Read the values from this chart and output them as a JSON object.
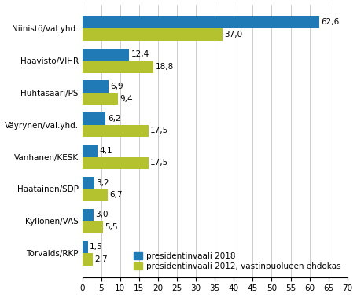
{
  "categories": [
    "Niinistö/val.yhd.",
    "Haavisto/VIHR",
    "Huhtasaari/PS",
    "Väyrynen/val.yhd.",
    "Vanhanen/KESK",
    "Haatainen/SDP",
    "Kyllönen/VAS",
    "Torvalds/RKP"
  ],
  "values_2018": [
    62.6,
    12.4,
    6.9,
    6.2,
    4.1,
    3.2,
    3.0,
    1.5
  ],
  "values_2012": [
    37.0,
    18.8,
    9.4,
    17.5,
    17.5,
    6.7,
    5.5,
    2.7
  ],
  "color_2018": "#1f7ab5",
  "color_2012": "#b5c230",
  "legend_2018": "presidentinvaali 2018",
  "legend_2012": "presidentinvaali 2012, vastinpuolueen ehdokas",
  "xlim": [
    0,
    70
  ],
  "xticks": [
    0,
    5,
    10,
    15,
    20,
    25,
    30,
    35,
    40,
    45,
    50,
    55,
    60,
    65,
    70
  ],
  "bar_height": 0.38,
  "label_fontsize": 7.5,
  "tick_fontsize": 7.5,
  "legend_fontsize": 7.5,
  "background_color": "#ffffff"
}
